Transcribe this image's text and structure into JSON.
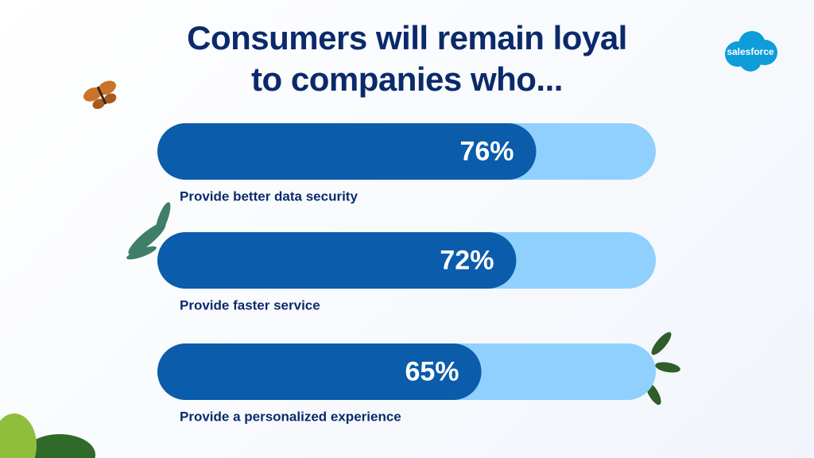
{
  "logo": "salesforce",
  "chart_data": {
    "type": "bar",
    "orientation": "horizontal",
    "title": "Consumers will remain loyal to companies who...",
    "categories": [
      "Provide better data security",
      "Provide faster service",
      "Provide a personalized experience"
    ],
    "values": [
      76,
      72,
      65
    ],
    "value_labels": [
      "76%",
      "72%",
      "65%"
    ],
    "xlim": [
      0,
      100
    ],
    "color": "#0b5cab",
    "track_color": "#90d0fe"
  }
}
